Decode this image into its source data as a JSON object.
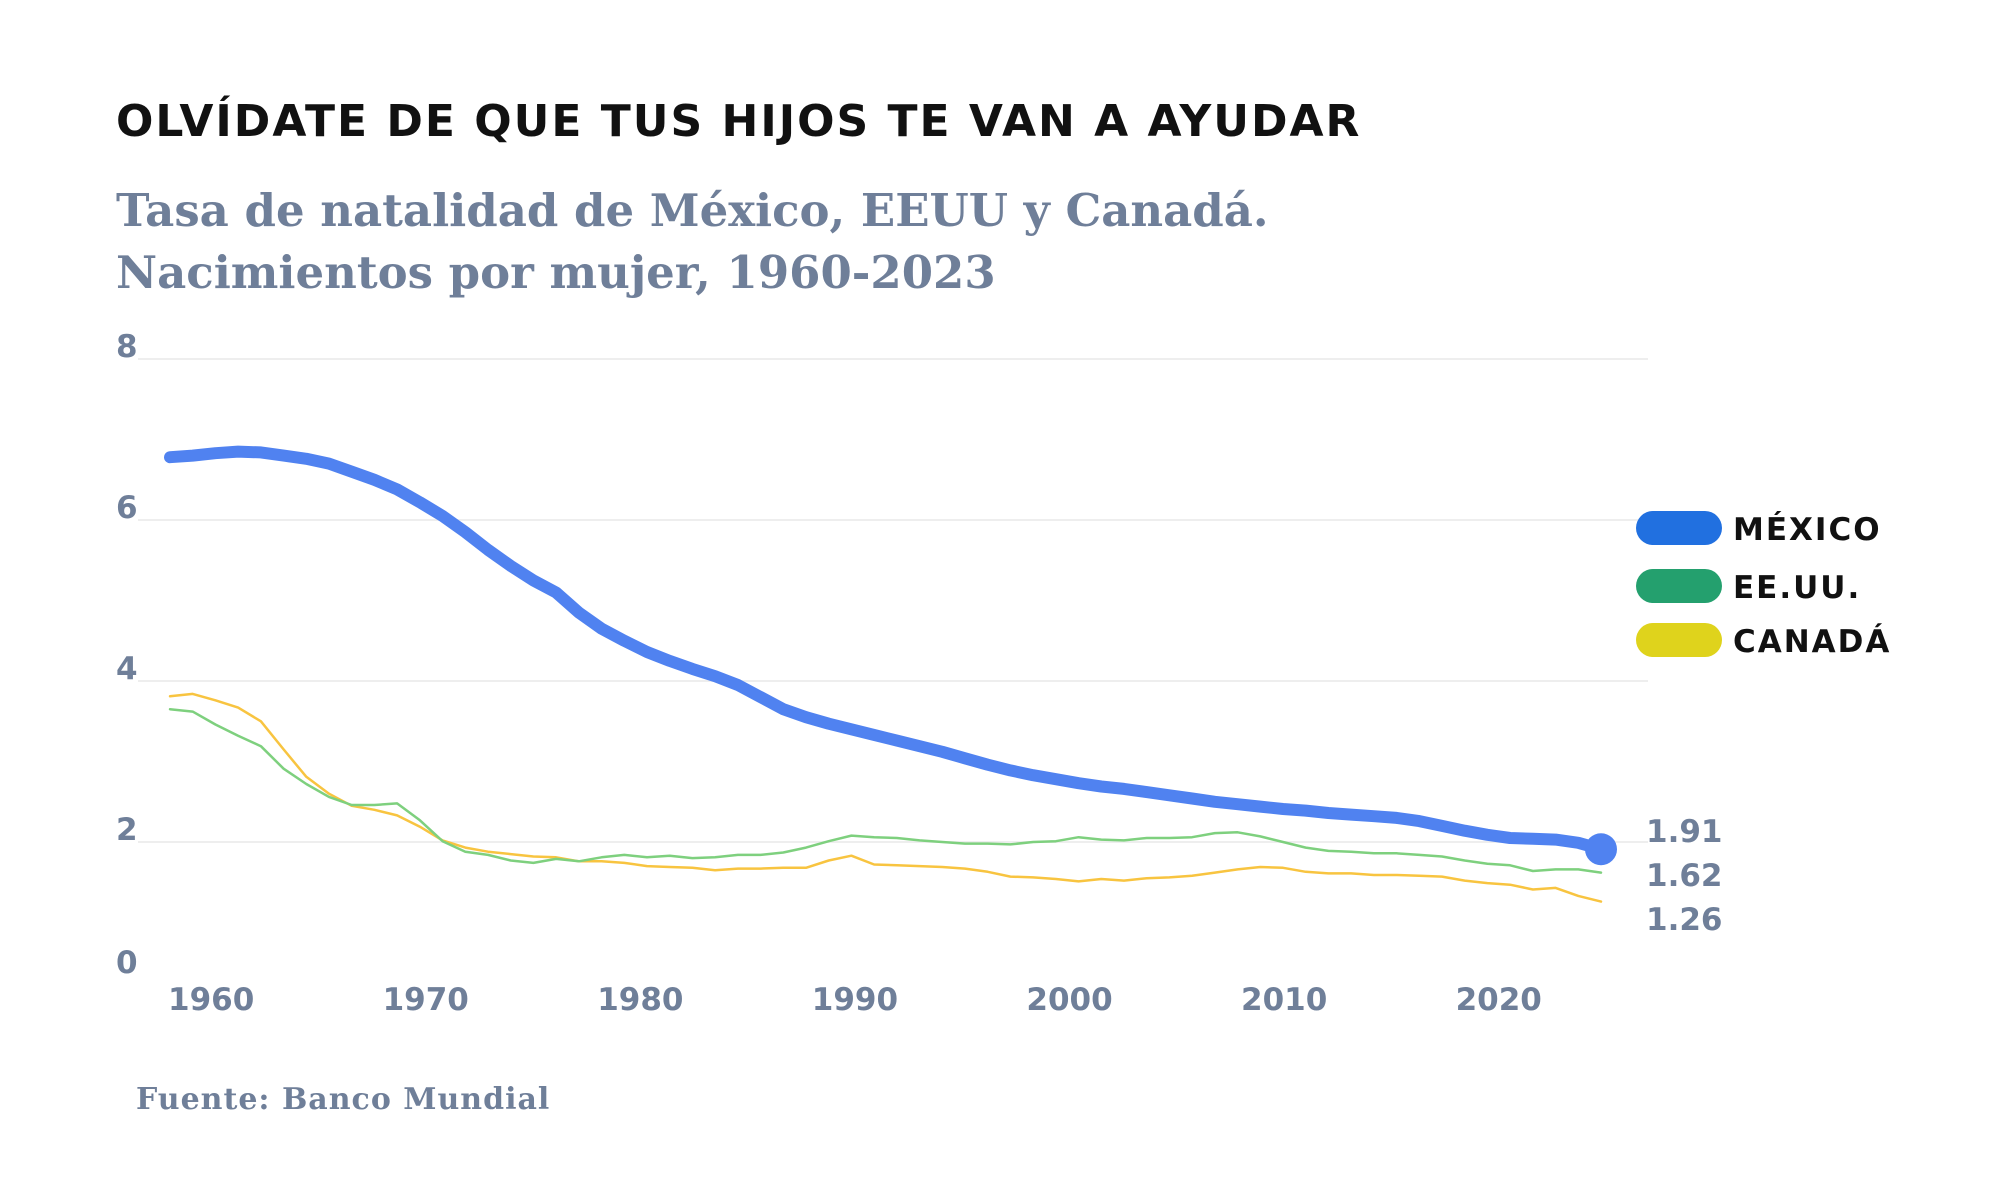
{
  "chart_data": {
    "type": "line",
    "title": "OLVÍDATE DE QUE TUS HIJOS TE VAN A AYUDAR",
    "subtitle": "Tasa de natalidad de México, EEUU y Canadá. Nacimientos por mujer, 1960-2023",
    "source": "Fuente: Banco Mundial",
    "xlabel": "",
    "ylabel": "",
    "x_ticks": [
      "1960",
      "1970",
      "1980",
      "1990",
      "2000",
      "2010",
      "2020"
    ],
    "y_ticks": [
      "0",
      "2",
      "4",
      "6",
      "8"
    ],
    "ylim": [
      0,
      8
    ],
    "grid": true,
    "legend_placement": "right",
    "x": [
      1960,
      1961,
      1962,
      1963,
      1964,
      1965,
      1966,
      1967,
      1968,
      1969,
      1970,
      1971,
      1972,
      1973,
      1974,
      1975,
      1976,
      1977,
      1978,
      1979,
      1980,
      1981,
      1982,
      1983,
      1984,
      1985,
      1986,
      1987,
      1988,
      1989,
      1990,
      1991,
      1992,
      1993,
      1994,
      1995,
      1996,
      1997,
      1998,
      1999,
      2000,
      2001,
      2002,
      2003,
      2004,
      2005,
      2006,
      2007,
      2008,
      2009,
      2010,
      2011,
      2012,
      2013,
      2014,
      2015,
      2016,
      2017,
      2018,
      2019,
      2020,
      2021,
      2022,
      2023
    ],
    "series": [
      {
        "name": "MÉXICO",
        "color": "#5082f0",
        "legend_color": "#2170e0",
        "end_label": "1.91",
        "values": [
          6.78,
          6.8,
          6.83,
          6.85,
          6.84,
          6.8,
          6.76,
          6.7,
          6.6,
          6.5,
          6.38,
          6.22,
          6.05,
          5.85,
          5.63,
          5.43,
          5.25,
          5.1,
          4.85,
          4.65,
          4.5,
          4.36,
          4.25,
          4.15,
          4.06,
          3.95,
          3.8,
          3.65,
          3.55,
          3.47,
          3.4,
          3.33,
          3.26,
          3.19,
          3.12,
          3.04,
          2.96,
          2.89,
          2.83,
          2.78,
          2.73,
          2.69,
          2.66,
          2.62,
          2.58,
          2.54,
          2.5,
          2.47,
          2.44,
          2.41,
          2.39,
          2.36,
          2.34,
          2.32,
          2.3,
          2.26,
          2.2,
          2.14,
          2.09,
          2.05,
          2.04,
          2.03,
          1.99,
          1.91
        ]
      },
      {
        "name": "EE.UU.",
        "color": "#7ed07e",
        "legend_color": "#24a06e",
        "end_label": "1.62",
        "values": [
          3.65,
          3.62,
          3.46,
          3.32,
          3.19,
          2.91,
          2.72,
          2.56,
          2.46,
          2.46,
          2.48,
          2.27,
          2.01,
          1.88,
          1.84,
          1.77,
          1.74,
          1.79,
          1.76,
          1.81,
          1.84,
          1.81,
          1.83,
          1.8,
          1.81,
          1.84,
          1.84,
          1.87,
          1.93,
          2.01,
          2.08,
          2.06,
          2.05,
          2.02,
          2.0,
          1.98,
          1.98,
          1.97,
          2.0,
          2.01,
          2.06,
          2.03,
          2.02,
          2.05,
          2.05,
          2.06,
          2.11,
          2.12,
          2.07,
          2.0,
          1.93,
          1.89,
          1.88,
          1.86,
          1.86,
          1.84,
          1.82,
          1.77,
          1.73,
          1.71,
          1.64,
          1.66,
          1.66,
          1.62
        ]
      },
      {
        "name": "CANADÁ",
        "color": "#f8c440",
        "legend_color": "#dfd31c",
        "end_label": "1.26",
        "values": [
          3.81,
          3.84,
          3.76,
          3.67,
          3.5,
          3.15,
          2.81,
          2.6,
          2.45,
          2.4,
          2.33,
          2.19,
          2.02,
          1.93,
          1.88,
          1.85,
          1.82,
          1.81,
          1.76,
          1.76,
          1.74,
          1.7,
          1.69,
          1.68,
          1.65,
          1.67,
          1.67,
          1.68,
          1.68,
          1.77,
          1.83,
          1.72,
          1.71,
          1.7,
          1.69,
          1.67,
          1.63,
          1.57,
          1.56,
          1.54,
          1.51,
          1.54,
          1.52,
          1.55,
          1.56,
          1.58,
          1.62,
          1.66,
          1.69,
          1.68,
          1.63,
          1.61,
          1.61,
          1.59,
          1.59,
          1.58,
          1.57,
          1.52,
          1.49,
          1.47,
          1.41,
          1.43,
          1.33,
          1.26
        ]
      }
    ]
  }
}
